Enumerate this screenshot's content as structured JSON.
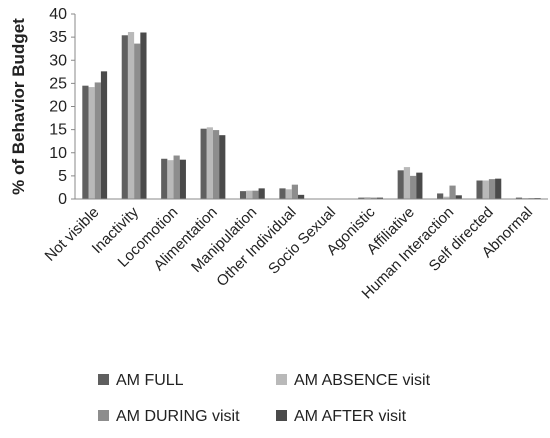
{
  "chart_data": {
    "type": "bar",
    "ylabel": "% of Behavior Budget",
    "ylim": [
      0,
      40
    ],
    "yticks": [
      0,
      5,
      10,
      15,
      20,
      25,
      30,
      35,
      40
    ],
    "grid": false,
    "legend_position": "bottom",
    "categories": [
      "Not visible",
      "Inactivity",
      "Locomotion",
      "Alimentation",
      "Manipulation",
      "Other Individual",
      "Socio Sexual",
      "Agonistic",
      "Affiliative",
      "Human Interaction",
      "Self directed",
      "Abnormal"
    ],
    "series": [
      {
        "name": "AM FULL",
        "color": "#5f5f5f",
        "values": [
          24.5,
          35.4,
          8.7,
          15.2,
          1.7,
          2.3,
          0.1,
          0.3,
          6.2,
          1.2,
          4.0,
          0.3
        ]
      },
      {
        "name": "AM ABSENCE visit",
        "color": "#b9b9b9",
        "values": [
          24.2,
          36.1,
          8.4,
          15.5,
          1.8,
          2.1,
          0.1,
          0.4,
          6.9,
          0.5,
          4.0,
          0.2
        ]
      },
      {
        "name": "AM DURING visit",
        "color": "#8d8d8d",
        "values": [
          25.2,
          33.6,
          9.4,
          14.9,
          1.8,
          3.1,
          0.1,
          0.3,
          5.0,
          2.9,
          4.3,
          0.2
        ]
      },
      {
        "name": "AM AFTER visit",
        "color": "#4a4a4a",
        "values": [
          27.6,
          36.0,
          8.5,
          13.8,
          2.3,
          0.9,
          0.1,
          0.3,
          5.7,
          0.8,
          4.4,
          0.2
        ]
      }
    ]
  }
}
